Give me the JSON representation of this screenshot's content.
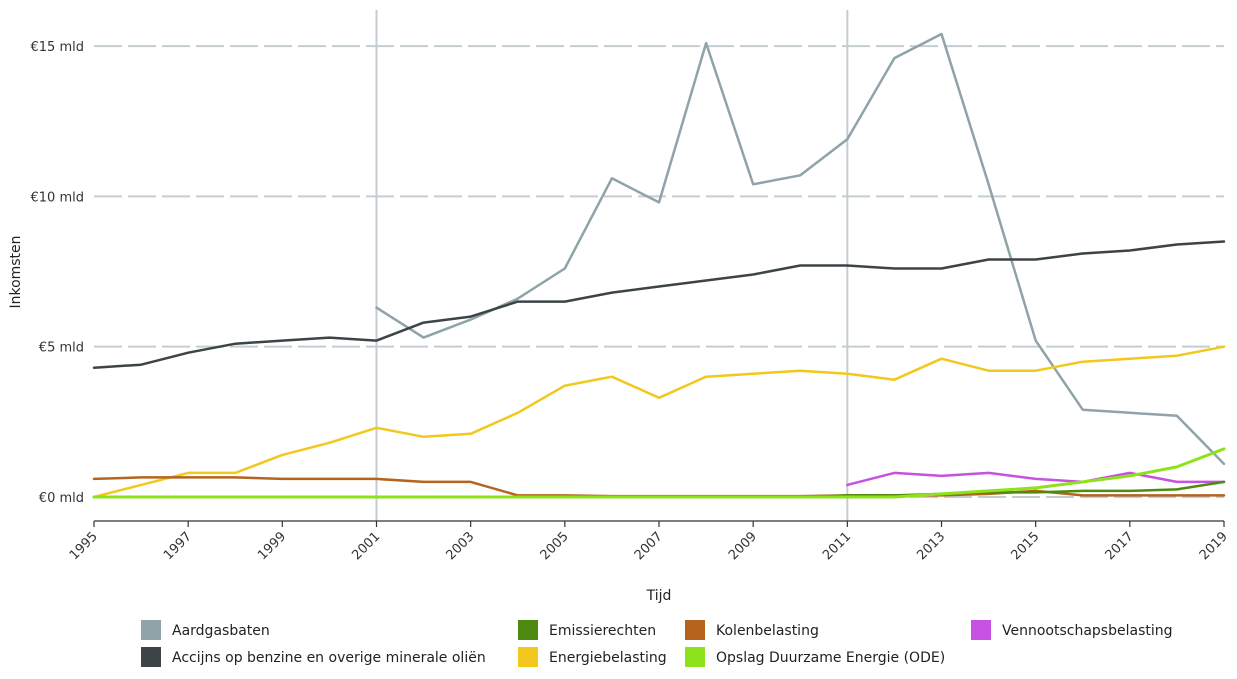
{
  "chart_data": {
    "type": "line",
    "xlabel": "Tijd",
    "ylabel": "Inkomsten",
    "x_ticks": [
      "1995",
      "1997",
      "1999",
      "2001",
      "2003",
      "2005",
      "2007",
      "2009",
      "2011",
      "2013",
      "2015",
      "2017",
      "2019"
    ],
    "y_ticks": [
      "€0 mld",
      "€5 mld",
      "€10 mld",
      "€15 mld"
    ],
    "y_tick_values": [
      0,
      5,
      10,
      15
    ],
    "xlim": [
      1995,
      2019
    ],
    "ylim": [
      -0.8,
      16.2
    ],
    "vertical_markers": [
      2001,
      2011
    ],
    "grid": "horizontal dashed",
    "legend_position": "bottom",
    "series": [
      {
        "name": "Aardgasbaten",
        "color": "#8fa3a8",
        "x": [
          2001,
          2002,
          2003,
          2004,
          2005,
          2006,
          2007,
          2008,
          2009,
          2010,
          2011,
          2012,
          2013,
          2014,
          2015,
          2016,
          2017,
          2018,
          2019
        ],
        "y": [
          6.3,
          5.3,
          5.9,
          6.6,
          7.6,
          10.6,
          9.8,
          15.1,
          10.4,
          10.7,
          11.9,
          14.6,
          15.4,
          10.4,
          5.2,
          2.9,
          2.8,
          2.7,
          1.1
        ]
      },
      {
        "name": "Accijns op benzine en overige minerale oliën",
        "color": "#3d4446",
        "x": [
          1995,
          1996,
          1997,
          1998,
          1999,
          2000,
          2001,
          2002,
          2003,
          2004,
          2005,
          2006,
          2007,
          2008,
          2009,
          2010,
          2011,
          2012,
          2013,
          2014,
          2015,
          2016,
          2017,
          2018,
          2019
        ],
        "y": [
          4.3,
          4.4,
          4.8,
          5.1,
          5.2,
          5.3,
          5.2,
          5.8,
          6.0,
          6.5,
          6.5,
          6.8,
          7.0,
          7.2,
          7.4,
          7.7,
          7.7,
          7.6,
          7.6,
          7.9,
          7.9,
          8.1,
          8.2,
          8.4,
          8.5
        ]
      },
      {
        "name": "Emissierechten",
        "color": "#4f8a10",
        "x": [
          1995,
          2005,
          2010,
          2011,
          2012,
          2013,
          2014,
          2015,
          2016,
          2017,
          2018,
          2019
        ],
        "y": [
          0,
          0,
          0,
          0.05,
          0.05,
          0.1,
          0.15,
          0.15,
          0.2,
          0.2,
          0.25,
          0.5
        ]
      },
      {
        "name": "Energiebelasting",
        "color": "#f2c81c",
        "x": [
          1995,
          1996,
          1997,
          1998,
          1999,
          2000,
          2001,
          2002,
          2003,
          2004,
          2005,
          2006,
          2007,
          2008,
          2009,
          2010,
          2011,
          2012,
          2013,
          2014,
          2015,
          2016,
          2017,
          2018,
          2019
        ],
        "y": [
          0,
          0.4,
          0.8,
          0.8,
          1.4,
          1.8,
          2.3,
          2.0,
          2.1,
          2.8,
          3.7,
          4.0,
          3.3,
          4.0,
          4.1,
          4.2,
          4.1,
          3.9,
          4.6,
          4.2,
          4.2,
          4.5,
          4.6,
          4.7,
          5.0
        ]
      },
      {
        "name": "Kolenbelasting",
        "color": "#b5641e",
        "x": [
          1995,
          1996,
          1997,
          1998,
          1999,
          2000,
          2001,
          2002,
          2003,
          2004,
          2005,
          2006,
          2007,
          2008,
          2009,
          2010,
          2011,
          2012,
          2013,
          2014,
          2015,
          2016,
          2017,
          2018,
          2019
        ],
        "y": [
          0.6,
          0.65,
          0.65,
          0.65,
          0.6,
          0.6,
          0.6,
          0.5,
          0.5,
          0.05,
          0.05,
          0.03,
          0.03,
          0.03,
          0.03,
          0.03,
          0.05,
          0.05,
          0.05,
          0.1,
          0.2,
          0.05,
          0.05,
          0.05,
          0.05
        ]
      },
      {
        "name": "Opslag Duurzame Energie (ODE)",
        "color": "#8ee21b",
        "x": [
          1995,
          2012,
          2013,
          2014,
          2015,
          2016,
          2017,
          2018,
          2019
        ],
        "y": [
          0,
          0,
          0.1,
          0.2,
          0.3,
          0.5,
          0.7,
          1.0,
          1.6
        ]
      },
      {
        "name": "Vennootschapsbelasting",
        "color": "#c552e0",
        "x": [
          2011,
          2012,
          2013,
          2014,
          2015,
          2016,
          2017,
          2018,
          2019
        ],
        "y": [
          0.4,
          0.8,
          0.7,
          0.8,
          0.6,
          0.5,
          0.8,
          0.5,
          0.5
        ]
      }
    ],
    "legend_order": [
      "Aardgasbaten",
      "Accijns op benzine en overige minerale oliën",
      "Emissierechten",
      "Energiebelasting",
      "Kolenbelasting",
      "Opslag Duurzame Energie (ODE)",
      "Vennootschapsbelasting"
    ]
  }
}
